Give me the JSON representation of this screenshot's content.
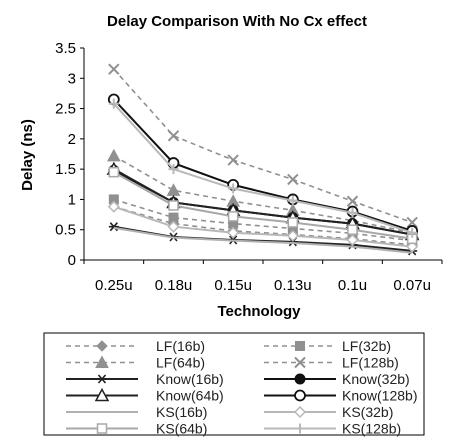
{
  "chart_data": {
    "type": "line",
    "title": "Delay Comparison With No Cx effect",
    "xlabel": "Technology",
    "ylabel": "Delay (ns)",
    "categories": [
      "0.25u",
      "0.18u",
      "0.15u",
      "0.13u",
      "0.1u",
      "0.07u"
    ],
    "ylim": [
      0,
      3.5
    ],
    "yticks": [
      "0",
      "0.5",
      "1",
      "1.5",
      "2",
      "2.5",
      "3",
      "3.5"
    ],
    "grid": false,
    "legend_position": "bottom",
    "series": [
      {
        "name": "LF(16b)",
        "values": [
          0.88,
          0.6,
          0.48,
          0.42,
          0.35,
          0.25
        ],
        "color": "#909090",
        "dash": "dashed",
        "marker": "diamond"
      },
      {
        "name": "LF(32b)",
        "values": [
          1.0,
          0.7,
          0.6,
          0.52,
          0.44,
          0.32
        ],
        "color": "#909090",
        "dash": "dashed",
        "marker": "square"
      },
      {
        "name": "LF(64b)",
        "values": [
          1.72,
          1.15,
          0.97,
          0.82,
          0.65,
          0.45
        ],
        "color": "#909090",
        "dash": "dashed",
        "marker": "triangle"
      },
      {
        "name": "LF(128b)",
        "values": [
          3.15,
          2.05,
          1.65,
          1.33,
          0.97,
          0.62
        ],
        "color": "#909090",
        "dash": "dashed",
        "marker": "x"
      },
      {
        "name": "Know(16b)",
        "values": [
          0.55,
          0.38,
          0.33,
          0.3,
          0.25,
          0.15
        ],
        "color": "#222222",
        "dash": "solid",
        "marker": "asterisk"
      },
      {
        "name": "Know(32b)",
        "values": [
          1.48,
          0.95,
          0.82,
          0.7,
          0.6,
          0.42
        ],
        "color": "#111111",
        "dash": "solid",
        "marker": "circle-filled"
      },
      {
        "name": "Know(64b)",
        "values": [
          1.5,
          0.95,
          0.82,
          0.7,
          0.6,
          0.42
        ],
        "color": "#222222",
        "dash": "solid",
        "marker": "triangle-open"
      },
      {
        "name": "Know(128b)",
        "values": [
          2.65,
          1.6,
          1.24,
          1.0,
          0.8,
          0.48
        ],
        "color": "#111111",
        "dash": "solid",
        "marker": "circle-open"
      },
      {
        "name": "KS(16b)",
        "values": [
          0.53,
          0.37,
          0.32,
          0.28,
          0.22,
          0.12
        ],
        "color": "#b0b0b0",
        "dash": "solid",
        "marker": "none"
      },
      {
        "name": "KS(32b)",
        "values": [
          0.88,
          0.55,
          0.45,
          0.4,
          0.33,
          0.22
        ],
        "color": "#b8b8b8",
        "dash": "solid",
        "marker": "diamond-open"
      },
      {
        "name": "KS(64b)",
        "values": [
          1.45,
          0.9,
          0.72,
          0.62,
          0.5,
          0.35
        ],
        "color": "#a8a8a8",
        "dash": "solid",
        "marker": "square-open"
      },
      {
        "name": "KS(128b)",
        "values": [
          2.58,
          1.5,
          1.18,
          0.98,
          0.78,
          0.45
        ],
        "color": "#b8b8b8",
        "dash": "solid",
        "marker": "plus"
      }
    ]
  }
}
